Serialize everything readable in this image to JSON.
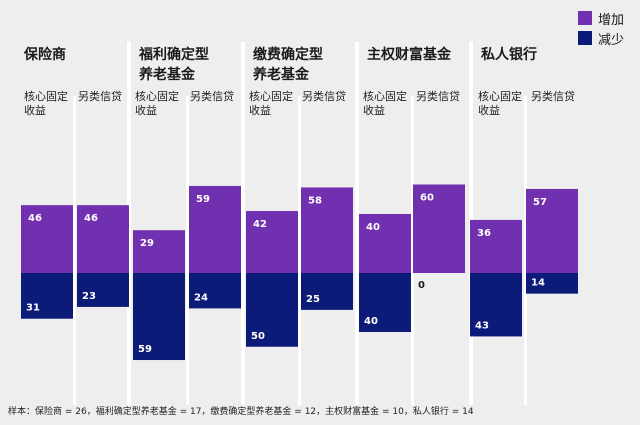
{
  "chart_data": {
    "type": "bar",
    "title": "",
    "groups": [
      {
        "name": "保险商",
        "categories": [
          "核心固定\n收益",
          "另类信贷"
        ],
        "increase": [
          46,
          46
        ],
        "decrease": [
          31,
          23
        ]
      },
      {
        "name": "福利确定型\n养老基金",
        "categories": [
          "核心固定\n收益",
          "另类信贷"
        ],
        "increase": [
          29,
          59
        ],
        "decrease": [
          59,
          24
        ]
      },
      {
        "name": "缴费确定型\n养老基金",
        "categories": [
          "核心固定\n收益",
          "另类信贷"
        ],
        "increase": [
          42,
          58
        ],
        "decrease": [
          50,
          25
        ]
      },
      {
        "name": "主权财富基金",
        "categories": [
          "核心固定\n收益",
          "另类信贷"
        ],
        "increase": [
          40,
          60
        ],
        "decrease": [
          40,
          0
        ]
      },
      {
        "name": "私人银行",
        "categories": [
          "核心固定\n收益",
          "另类信贷"
        ],
        "increase": [
          36,
          57
        ],
        "decrease": [
          43,
          14
        ]
      }
    ],
    "series": [
      {
        "name": "增加",
        "color": "#7030b0"
      },
      {
        "name": "减少",
        "color": "#0c1a78"
      }
    ]
  },
  "footnote": "样本：保险商 = 26，福利确定型养老基金 = 17，缴费确定型养老基金 = 12，主权财富基金 = 10，私人银行 = 14"
}
